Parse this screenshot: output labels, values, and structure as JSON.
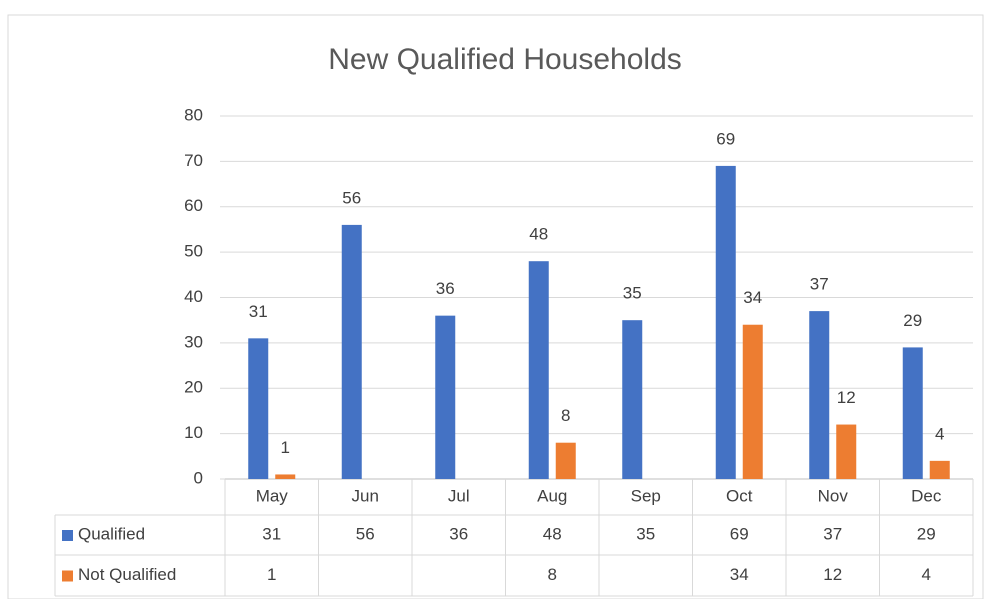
{
  "chart_data": {
    "type": "bar",
    "title": "New Qualified Households",
    "categories": [
      "May",
      "Jun",
      "Jul",
      "Aug",
      "Sep",
      "Oct",
      "Nov",
      "Dec"
    ],
    "series": [
      {
        "name": "Qualified",
        "color": "#4472c4",
        "values": [
          31,
          56,
          36,
          48,
          35,
          69,
          37,
          29
        ]
      },
      {
        "name": "Not Qualified",
        "color": "#ed7d31",
        "values": [
          1,
          null,
          null,
          8,
          null,
          34,
          12,
          4
        ]
      }
    ],
    "ylim": [
      0,
      80
    ],
    "yticks": [
      0,
      10,
      20,
      30,
      40,
      50,
      60,
      70,
      80
    ],
    "grid": true
  }
}
